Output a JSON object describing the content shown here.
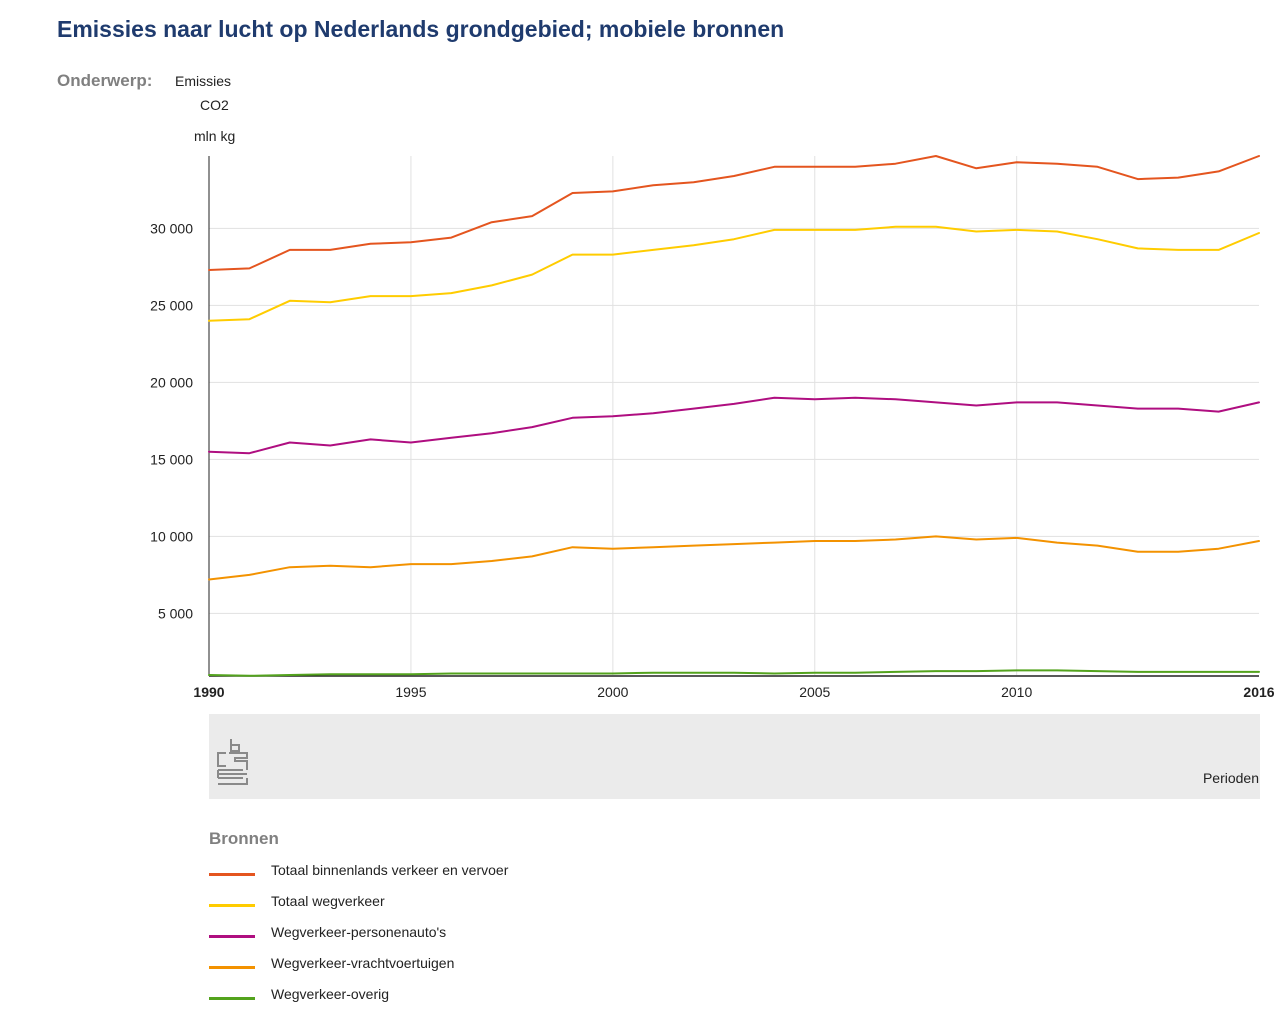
{
  "title": "Emissies naar lucht op Nederlands grondgebied; mobiele bronnen",
  "subject": {
    "label": "Onderwerp:",
    "value": "Emissies",
    "measure": "CO2"
  },
  "unit": "mln kg",
  "xaxis_title": "Perioden",
  "legend_title": "Bronnen",
  "chart_data": {
    "type": "line",
    "title": "Emissies naar lucht op Nederlands grondgebied; mobiele bronnen",
    "ylabel": "mln kg",
    "xlabel": "Perioden",
    "ylim": [
      1000,
      34700
    ],
    "yticks": [
      5000,
      10000,
      15000,
      20000,
      25000,
      30000
    ],
    "ytick_labels": [
      "5 000",
      "10 000",
      "15 000",
      "20 000",
      "25 000",
      "30 000"
    ],
    "xticks": [
      1990,
      1995,
      2000,
      2005,
      2010,
      2016
    ],
    "xtick_labels": [
      "1990",
      "1995",
      "2000",
      "2005",
      "2010",
      "2016"
    ],
    "grid": true,
    "legend_position": "bottom",
    "x": [
      1990,
      1991,
      1992,
      1993,
      1994,
      1995,
      1996,
      1997,
      1998,
      1999,
      2000,
      2001,
      2002,
      2003,
      2004,
      2005,
      2006,
      2007,
      2008,
      2009,
      2010,
      2011,
      2012,
      2013,
      2014,
      2015,
      2016
    ],
    "series": [
      {
        "name": "Totaal binnenlands verkeer en vervoer",
        "color": "#e4551f",
        "values": [
          27300,
          27400,
          28600,
          28600,
          29000,
          29100,
          29400,
          30400,
          30800,
          32300,
          32400,
          32800,
          33000,
          33400,
          34000,
          34000,
          34000,
          34200,
          34700,
          33900,
          34300,
          34200,
          34000,
          33200,
          33300,
          33700,
          34700
        ]
      },
      {
        "name": "Totaal wegverkeer",
        "color": "#ffcc00",
        "values": [
          24000,
          24100,
          25300,
          25200,
          25600,
          25600,
          25800,
          26300,
          27000,
          28300,
          28300,
          28600,
          28900,
          29300,
          29900,
          29900,
          29900,
          30100,
          30100,
          29800,
          29900,
          29800,
          29300,
          28700,
          28600,
          28600,
          29700
        ]
      },
      {
        "name": "Wegverkeer-personenauto's",
        "color": "#af0e80",
        "values": [
          15500,
          15400,
          16100,
          15900,
          16300,
          16100,
          16400,
          16700,
          17100,
          17700,
          17800,
          18000,
          18300,
          18600,
          19000,
          18900,
          19000,
          18900,
          18700,
          18500,
          18700,
          18700,
          18500,
          18300,
          18300,
          18100,
          18700
        ]
      },
      {
        "name": "Wegverkeer-vrachtvoertuigen",
        "color": "#f39200",
        "values": [
          7200,
          7500,
          8000,
          8100,
          8000,
          8200,
          8200,
          8400,
          8700,
          9300,
          9200,
          9300,
          9400,
          9500,
          9600,
          9700,
          9700,
          9800,
          10000,
          9800,
          9900,
          9600,
          9400,
          9000,
          9000,
          9200,
          9700
        ]
      },
      {
        "name": "Wegverkeer-overig",
        "color": "#53a31d",
        "values": [
          1000,
          950,
          1000,
          1050,
          1050,
          1050,
          1100,
          1100,
          1100,
          1100,
          1100,
          1150,
          1150,
          1150,
          1100,
          1150,
          1150,
          1200,
          1250,
          1250,
          1300,
          1300,
          1250,
          1200,
          1200,
          1200,
          1200
        ]
      }
    ]
  }
}
